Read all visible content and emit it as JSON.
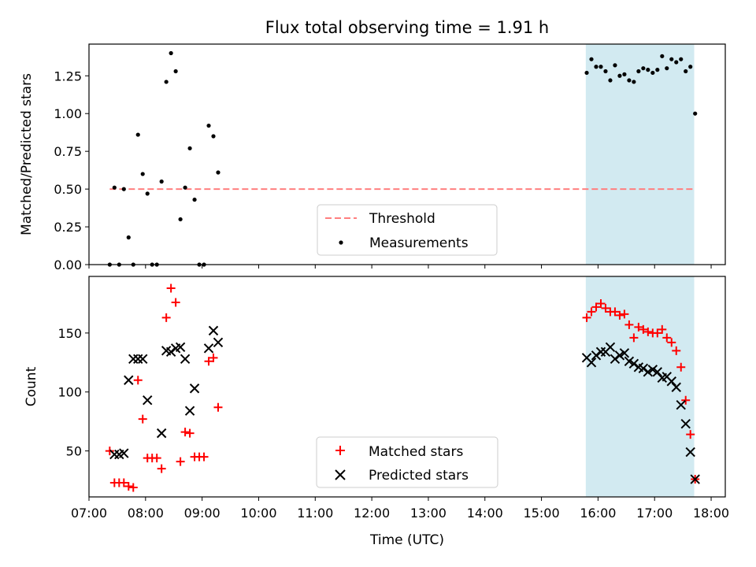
{
  "title": "Flux total observing time = 1.91 h",
  "colors": {
    "threshold": "#ff7f7f",
    "measurement": "#000000",
    "matched": "#ff0000",
    "predicted": "#000000",
    "highlight": "#add8e6"
  },
  "chart_data": [
    {
      "type": "scatter",
      "ylabel": "Matched/Predicted stars",
      "ylim": [
        0,
        1.46
      ],
      "xlim": [
        "07:00",
        "18:15"
      ],
      "yticks": [
        "0.00",
        "0.25",
        "0.50",
        "0.75",
        "1.00",
        "1.25"
      ],
      "yticks_values": [
        0,
        0.25,
        0.5,
        0.75,
        1.0,
        1.25
      ],
      "grid": false,
      "legend_position": "lower-center",
      "highlight_span": [
        "15:47",
        "17:42"
      ],
      "threshold": {
        "name": "Threshold",
        "value": 0.5,
        "x_range": [
          "07:22",
          "17:42"
        ]
      },
      "series": [
        {
          "name": "Measurements",
          "marker": "dot",
          "points": [
            [
              "07:22",
              0.0
            ],
            [
              "07:27",
              0.51
            ],
            [
              "07:32",
              0.0
            ],
            [
              "07:37",
              0.5
            ],
            [
              "07:42",
              0.18
            ],
            [
              "07:47",
              0.0
            ],
            [
              "07:52",
              0.86
            ],
            [
              "07:57",
              0.6
            ],
            [
              "08:02",
              0.47
            ],
            [
              "08:07",
              0.0
            ],
            [
              "08:12",
              0.0
            ],
            [
              "08:17",
              0.55
            ],
            [
              "08:22",
              1.21
            ],
            [
              "08:27",
              1.4
            ],
            [
              "08:32",
              1.28
            ],
            [
              "08:37",
              0.3
            ],
            [
              "08:42",
              0.51
            ],
            [
              "08:47",
              0.77
            ],
            [
              "08:52",
              0.43
            ],
            [
              "08:57",
              0.0
            ],
            [
              "09:02",
              0.0
            ],
            [
              "09:07",
              0.92
            ],
            [
              "09:12",
              0.85
            ],
            [
              "09:17",
              0.61
            ],
            [
              "15:48",
              1.27
            ],
            [
              "15:53",
              1.36
            ],
            [
              "15:58",
              1.31
            ],
            [
              "16:03",
              1.31
            ],
            [
              "16:08",
              1.28
            ],
            [
              "16:13",
              1.22
            ],
            [
              "16:18",
              1.32
            ],
            [
              "16:23",
              1.25
            ],
            [
              "16:28",
              1.26
            ],
            [
              "16:33",
              1.22
            ],
            [
              "16:38",
              1.21
            ],
            [
              "16:43",
              1.28
            ],
            [
              "16:48",
              1.3
            ],
            [
              "16:53",
              1.29
            ],
            [
              "16:58",
              1.27
            ],
            [
              "17:03",
              1.29
            ],
            [
              "17:08",
              1.38
            ],
            [
              "17:13",
              1.3
            ],
            [
              "17:18",
              1.36
            ],
            [
              "17:23",
              1.34
            ],
            [
              "17:28",
              1.36
            ],
            [
              "17:33",
              1.28
            ],
            [
              "17:38",
              1.31
            ],
            [
              "17:43",
              1.0
            ]
          ]
        }
      ]
    },
    {
      "type": "scatter",
      "xlabel": "Time (UTC)",
      "ylabel": "Count",
      "ylim": [
        11,
        198
      ],
      "xlim": [
        "07:00",
        "18:15"
      ],
      "xticks": [
        "07:00",
        "08:00",
        "09:00",
        "10:00",
        "11:00",
        "12:00",
        "13:00",
        "14:00",
        "15:00",
        "16:00",
        "17:00",
        "18:00"
      ],
      "yticks": [
        "50",
        "100",
        "150"
      ],
      "yticks_values": [
        50,
        100,
        150
      ],
      "grid": false,
      "legend_position": "lower-center",
      "highlight_span": [
        "15:47",
        "17:42"
      ],
      "series": [
        {
          "name": "Matched stars",
          "marker": "plus",
          "points": [
            [
              "07:22",
              50
            ],
            [
              "07:27",
              23
            ],
            [
              "07:32",
              23
            ],
            [
              "07:37",
              23
            ],
            [
              "07:42",
              20
            ],
            [
              "07:47",
              19
            ],
            [
              "07:52",
              110
            ],
            [
              "07:57",
              77
            ],
            [
              "08:02",
              44
            ],
            [
              "08:07",
              44
            ],
            [
              "08:12",
              44
            ],
            [
              "08:17",
              35
            ],
            [
              "08:22",
              163
            ],
            [
              "08:27",
              188
            ],
            [
              "08:32",
              176
            ],
            [
              "08:37",
              41
            ],
            [
              "08:42",
              66
            ],
            [
              "08:47",
              65
            ],
            [
              "08:52",
              45
            ],
            [
              "08:57",
              45
            ],
            [
              "09:02",
              45
            ],
            [
              "09:07",
              126
            ],
            [
              "09:12",
              129
            ],
            [
              "09:17",
              87
            ],
            [
              "15:48",
              163
            ],
            [
              "15:53",
              168
            ],
            [
              "15:58",
              172
            ],
            [
              "16:03",
              175
            ],
            [
              "16:08",
              171
            ],
            [
              "16:13",
              168
            ],
            [
              "16:18",
              168
            ],
            [
              "16:23",
              165
            ],
            [
              "16:28",
              166
            ],
            [
              "16:33",
              157
            ],
            [
              "16:38",
              146
            ],
            [
              "16:43",
              155
            ],
            [
              "16:48",
              153
            ],
            [
              "16:53",
              151
            ],
            [
              "16:58",
              150
            ],
            [
              "17:03",
              150
            ],
            [
              "17:08",
              153
            ],
            [
              "17:13",
              146
            ],
            [
              "17:18",
              142
            ],
            [
              "17:23",
              135
            ],
            [
              "17:28",
              121
            ],
            [
              "17:33",
              93
            ],
            [
              "17:38",
              64
            ],
            [
              "17:43",
              26
            ]
          ]
        },
        {
          "name": "Predicted stars",
          "marker": "x",
          "points": [
            [
              "07:27",
              47
            ],
            [
              "07:32",
              47
            ],
            [
              "07:37",
              48
            ],
            [
              "07:42",
              110
            ],
            [
              "07:47",
              128
            ],
            [
              "07:52",
              128
            ],
            [
              "07:57",
              128
            ],
            [
              "08:02",
              93
            ],
            [
              "08:17",
              65
            ],
            [
              "08:22",
              135
            ],
            [
              "08:27",
              134
            ],
            [
              "08:32",
              137
            ],
            [
              "08:37",
              138
            ],
            [
              "08:42",
              128
            ],
            [
              "08:47",
              84
            ],
            [
              "08:52",
              103
            ],
            [
              "09:07",
              137
            ],
            [
              "09:12",
              152
            ],
            [
              "09:17",
              142
            ],
            [
              "15:48",
              129
            ],
            [
              "15:53",
              125
            ],
            [
              "15:58",
              131
            ],
            [
              "16:03",
              134
            ],
            [
              "16:08",
              134
            ],
            [
              "16:13",
              138
            ],
            [
              "16:18",
              128
            ],
            [
              "16:23",
              131
            ],
            [
              "16:28",
              133
            ],
            [
              "16:33",
              126
            ],
            [
              "16:38",
              124
            ],
            [
              "16:43",
              121
            ],
            [
              "16:48",
              120
            ],
            [
              "16:53",
              117
            ],
            [
              "16:58",
              119
            ],
            [
              "17:03",
              117
            ],
            [
              "17:08",
              112
            ],
            [
              "17:13",
              113
            ],
            [
              "17:18",
              109
            ],
            [
              "17:23",
              104
            ],
            [
              "17:28",
              89
            ],
            [
              "17:33",
              73
            ],
            [
              "17:38",
              49
            ],
            [
              "17:43",
              26
            ]
          ]
        }
      ]
    }
  ]
}
